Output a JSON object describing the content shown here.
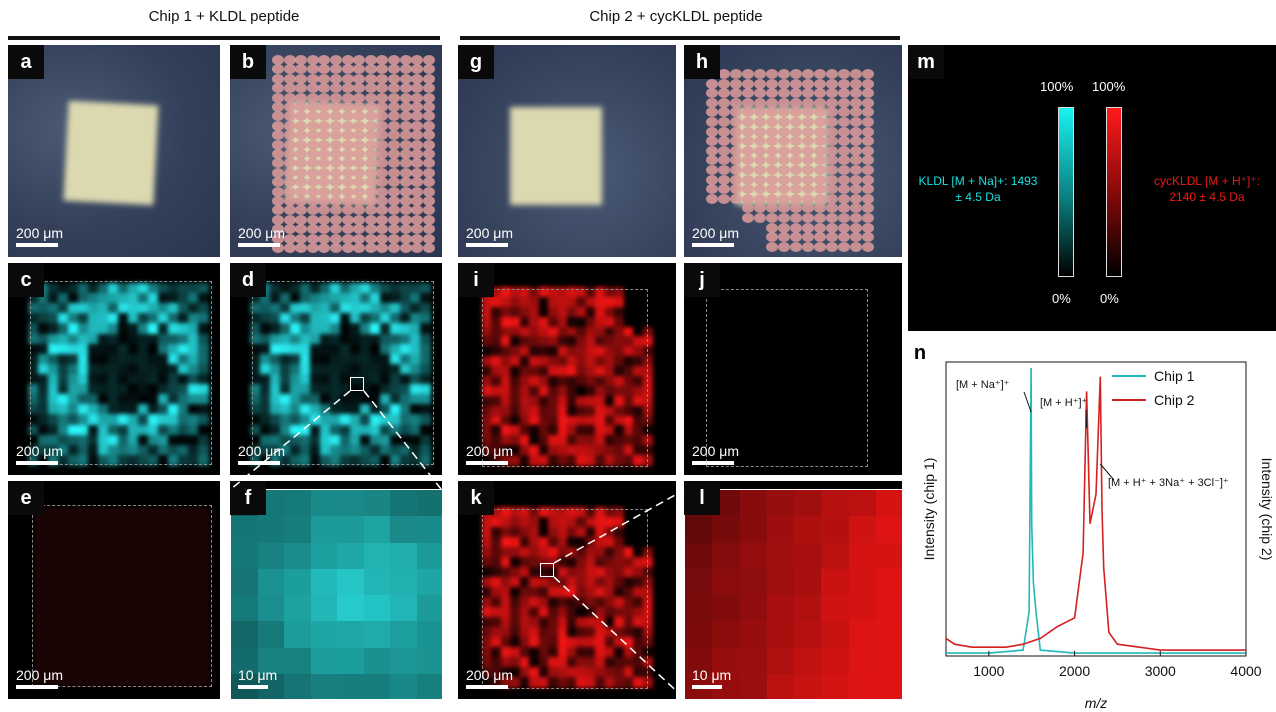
{
  "headers": {
    "left": "Chip 1 + KLDL peptide",
    "right": "Chip 2 + cycKLDL peptide"
  },
  "panels": {
    "a": {
      "letter": "a",
      "scale": "200 μm"
    },
    "b": {
      "letter": "b",
      "scale": "200 μm"
    },
    "c": {
      "letter": "c",
      "scale": "200 μm"
    },
    "d": {
      "letter": "d",
      "scale": "200 μm"
    },
    "e": {
      "letter": "e",
      "scale": "200 μm"
    },
    "f": {
      "letter": "f",
      "scale": "10 μm"
    },
    "g": {
      "letter": "g",
      "scale": "200 μm"
    },
    "h": {
      "letter": "h",
      "scale": "200 μm"
    },
    "i": {
      "letter": "i",
      "scale": "200 μm"
    },
    "j": {
      "letter": "j",
      "scale": "200 μm"
    },
    "k": {
      "letter": "k",
      "scale": "200 μm"
    },
    "l": {
      "letter": "l",
      "scale": "10 μm"
    }
  },
  "colorbar_panel": {
    "letter": "m",
    "cyan_top": "100%",
    "cyan_bottom": "0%",
    "red_top": "100%",
    "red_bottom": "0%",
    "cyan_label_line1": "KLDL [M + Na]+: 1493",
    "cyan_label_line2": "± 4.5 Da",
    "red_label_line1": "cycKLDL [M + H⁺]⁺:",
    "red_label_line2": "2140 ± 4.5 Da",
    "cyan_color": "#19e6e6",
    "red_color": "#e01010"
  },
  "spectrum_panel": {
    "letter": "n",
    "ylabel_left": "Intensity (chip 1)",
    "ylabel_right": "Intensity (chip 2)",
    "annotations": [
      "[M + Na⁺]⁺",
      "[M + H⁺]⁺",
      "[M + H⁺ + 3Na⁺ + 3Cl⁻]⁺"
    ]
  },
  "chart_data": {
    "type": "line",
    "xlabel": "m/z",
    "ylabel": "Intensity (chip 1)",
    "y2label": "Intensity (chip 2)",
    "xlim": [
      500,
      4000
    ],
    "xticks": [
      1000,
      2000,
      3000,
      4000
    ],
    "legend_position": "top-right",
    "series": [
      {
        "name": "Chip 1",
        "color": "#20b8b8",
        "x": [
          500,
          1000,
          1400,
          1470,
          1493,
          1500,
          1520,
          1550,
          1600,
          2000,
          3000,
          4000
        ],
        "y": [
          0.01,
          0.01,
          0.02,
          0.15,
          0.98,
          0.45,
          0.25,
          0.15,
          0.02,
          0.01,
          0.01,
          0.01
        ]
      },
      {
        "name": "Chip 2",
        "color": "#d42020",
        "x": [
          500,
          600,
          800,
          1000,
          1200,
          1400,
          1600,
          1800,
          2000,
          2100,
          2140,
          2180,
          2250,
          2300,
          2320,
          2340,
          2400,
          2500,
          3000,
          3500,
          4000
        ],
        "y": [
          0.06,
          0.04,
          0.03,
          0.03,
          0.03,
          0.04,
          0.06,
          0.1,
          0.13,
          0.35,
          0.9,
          0.45,
          0.55,
          0.95,
          0.5,
          0.3,
          0.08,
          0.04,
          0.02,
          0.02,
          0.02
        ]
      }
    ]
  }
}
